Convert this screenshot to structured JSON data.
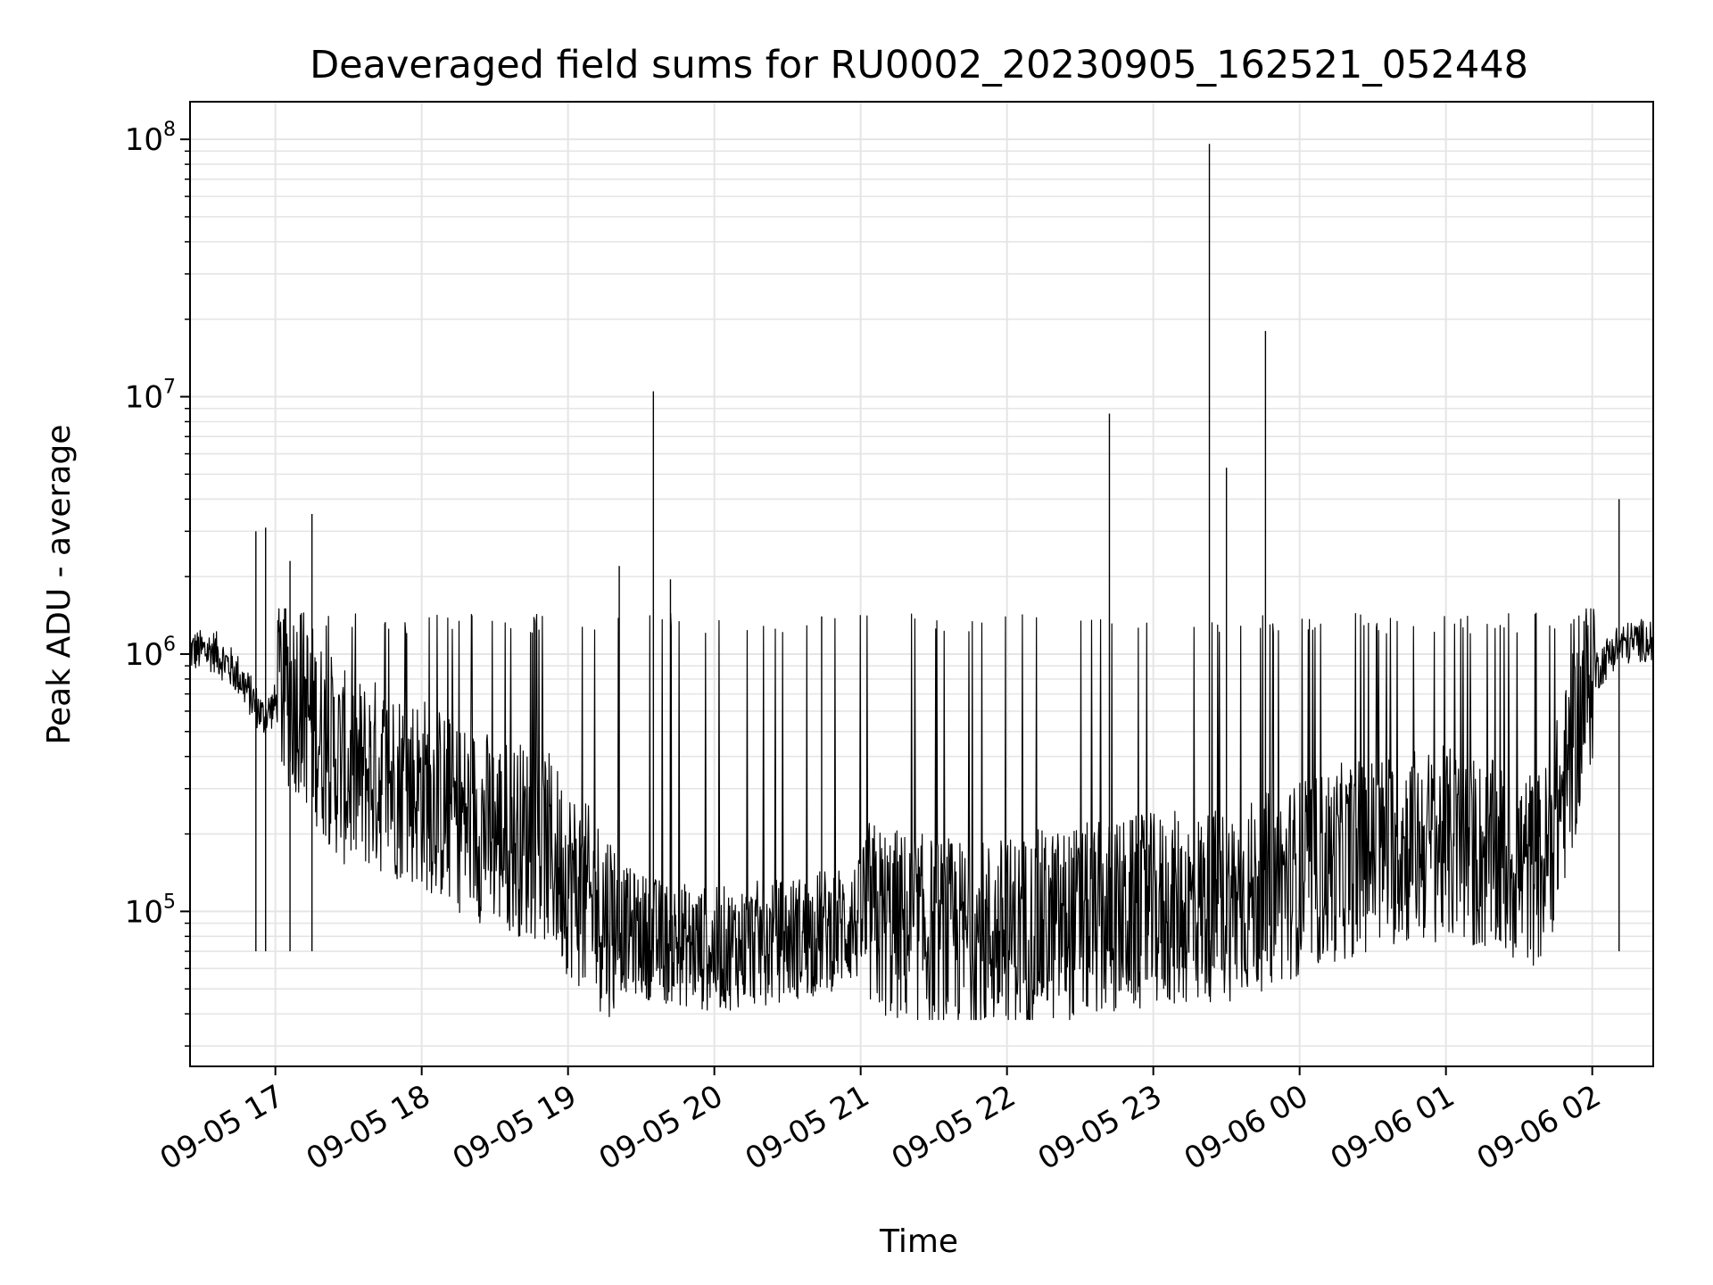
{
  "chart_data": {
    "type": "line",
    "title": "Deaveraged field sums for RU0002_20230905_162521_052448",
    "xlabel": "Time",
    "ylabel": "Peak ADU - average",
    "y_scale": "log",
    "ylim": [
      25000,
      140000000
    ],
    "xlim": [
      "2023-09-05 16:25",
      "2023-09-06 02:25"
    ],
    "x_ticks": [
      "09-05 17",
      "09-05 18",
      "09-05 19",
      "09-05 20",
      "09-05 21",
      "09-05 22",
      "09-05 23",
      "09-06 00",
      "09-06 01",
      "09-06 02"
    ],
    "x_tick_times": [
      "2023-09-05 17:00",
      "2023-09-05 18:00",
      "2023-09-05 19:00",
      "2023-09-05 20:00",
      "2023-09-05 21:00",
      "2023-09-05 22:00",
      "2023-09-05 23:00",
      "2023-09-06 00:00",
      "2023-09-06 01:00",
      "2023-09-06 02:00"
    ],
    "y_ticks": [
      {
        "base": "10",
        "exp": "5",
        "value": 100000
      },
      {
        "base": "10",
        "exp": "6",
        "value": 1000000
      },
      {
        "base": "10",
        "exp": "7",
        "value": 10000000
      },
      {
        "base": "10",
        "exp": "8",
        "value": 100000000
      }
    ],
    "grid": true,
    "line_color": "#000000",
    "grid_color": "#e5e5e5",
    "series": [
      {
        "x": [
          "2023-09-05 16:25",
          "2023-09-05 16:35",
          "2023-09-05 16:45",
          "2023-09-05 16:55",
          "2023-09-05 17:02",
          "2023-09-05 17:10",
          "2023-09-05 17:20",
          "2023-09-05 17:30",
          "2023-09-05 17:40",
          "2023-09-05 17:50",
          "2023-09-05 18:00",
          "2023-09-05 18:10",
          "2023-09-05 18:20",
          "2023-09-05 18:30",
          "2023-09-05 18:40",
          "2023-09-05 18:50",
          "2023-09-05 19:00",
          "2023-09-05 19:10",
          "2023-09-05 19:20",
          "2023-09-05 19:30",
          "2023-09-05 19:40",
          "2023-09-05 19:50",
          "2023-09-05 20:00",
          "2023-09-05 20:10",
          "2023-09-05 20:20",
          "2023-09-05 20:30",
          "2023-09-05 20:40",
          "2023-09-05 20:50",
          "2023-09-05 21:00",
          "2023-09-05 21:10",
          "2023-09-05 21:20",
          "2023-09-05 21:30",
          "2023-09-05 21:40",
          "2023-09-05 21:50",
          "2023-09-05 22:00",
          "2023-09-05 22:10",
          "2023-09-05 22:20",
          "2023-09-05 22:30",
          "2023-09-05 22:40",
          "2023-09-05 22:50",
          "2023-09-05 23:00",
          "2023-09-05 23:10",
          "2023-09-05 23:20",
          "2023-09-05 23:30",
          "2023-09-05 23:40",
          "2023-09-05 23:50",
          "2023-09-06 00:00",
          "2023-09-06 00:10",
          "2023-09-06 00:20",
          "2023-09-06 00:30",
          "2023-09-06 00:40",
          "2023-09-06 00:50",
          "2023-09-06 01:00",
          "2023-09-06 01:10",
          "2023-09-06 01:20",
          "2023-09-06 01:30",
          "2023-09-06 01:40",
          "2023-09-06 01:50",
          "2023-09-06 02:00",
          "2023-09-06 02:10",
          "2023-09-06 02:20"
        ],
        "y": [
          1000000,
          1000000,
          800000,
          550000,
          650000,
          600000,
          400000,
          300000,
          300000,
          280000,
          260000,
          220000,
          200000,
          180000,
          170000,
          160000,
          120000,
          90000,
          80000,
          75000,
          70000,
          68000,
          65000,
          68000,
          70000,
          72000,
          75000,
          80000,
          85000,
          80000,
          75000,
          72000,
          70000,
          70000,
          72000,
          75000,
          78000,
          80000,
          82000,
          85000,
          88000,
          90000,
          92000,
          95000,
          100000,
          110000,
          120000,
          130000,
          140000,
          150000,
          155000,
          160000,
          160000,
          150000,
          140000,
          130000,
          130000,
          300000,
          800000,
          1050000,
          1100000
        ]
      }
    ],
    "spikes": [
      {
        "x": "2023-09-05 16:52",
        "y": 3000000
      },
      {
        "x": "2023-09-05 16:56",
        "y": 3100000
      },
      {
        "x": "2023-09-05 17:06",
        "y": 2300000
      },
      {
        "x": "2023-09-05 17:15",
        "y": 3500000
      },
      {
        "x": "2023-09-05 19:21",
        "y": 2200000
      },
      {
        "x": "2023-09-05 19:35",
        "y": 10500000
      },
      {
        "x": "2023-09-05 19:42",
        "y": 1950000
      },
      {
        "x": "2023-09-05 20:44",
        "y": 1400000
      },
      {
        "x": "2023-09-05 22:42",
        "y": 8600000
      },
      {
        "x": "2023-09-05 23:23",
        "y": 96000000
      },
      {
        "x": "2023-09-05 23:30",
        "y": 5300000
      },
      {
        "x": "2023-09-05 23:46",
        "y": 18000000
      },
      {
        "x": "2023-09-06 02:11",
        "y": 4000000
      }
    ]
  }
}
